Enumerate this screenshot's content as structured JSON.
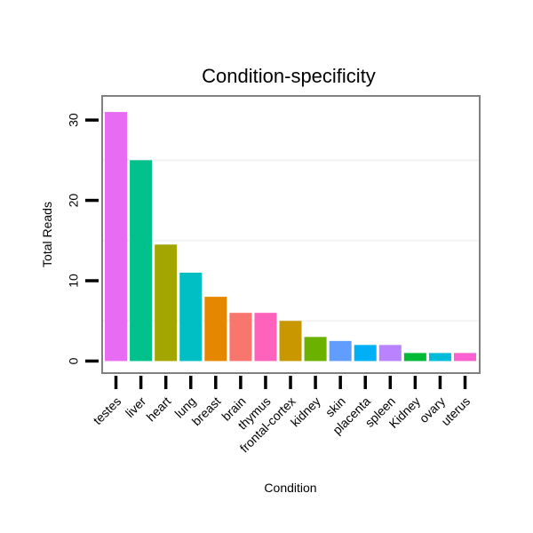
{
  "chart_data": {
    "type": "bar",
    "title": "Condition-specificity",
    "xlabel": "Condition",
    "ylabel": "Total Reads",
    "ylim": [
      -1.5,
      33
    ],
    "yticks": [
      0,
      10,
      20,
      30
    ],
    "grid": true,
    "categories": [
      "testes",
      "liver",
      "heart",
      "lung",
      "breast",
      "brain",
      "thymus",
      "frontal-cortex",
      "kidney",
      "skin",
      "placenta",
      "spleen",
      "Kidney",
      "ovary",
      "uterus"
    ],
    "values": [
      31,
      25,
      14.5,
      11,
      8,
      6,
      6,
      5,
      3,
      2.5,
      2,
      2,
      1,
      1,
      1
    ],
    "colors": [
      "#E76BF3",
      "#00C08B",
      "#A3A500",
      "#00BFC4",
      "#E58700",
      "#F8766D",
      "#FF62BC",
      "#C99800",
      "#6BB100",
      "#619CFF",
      "#00B0F6",
      "#B983FF",
      "#00BA38",
      "#00BCD8",
      "#FD61D1"
    ]
  }
}
